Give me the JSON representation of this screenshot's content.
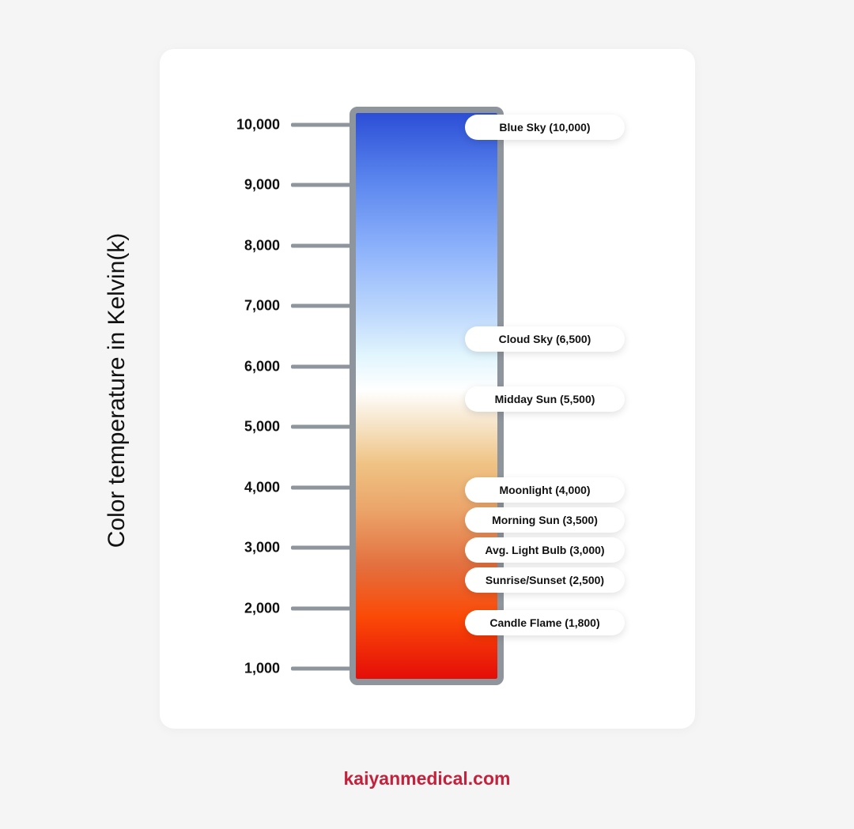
{
  "chart": {
    "y_axis_label": "Color temperature in Kelvin(k)",
    "ylim": [
      1000,
      10000
    ],
    "ticks": [
      {
        "value": 10000,
        "label": "10,000"
      },
      {
        "value": 9000,
        "label": "9,000"
      },
      {
        "value": 8000,
        "label": "8,000"
      },
      {
        "value": 7000,
        "label": "7,000"
      },
      {
        "value": 6000,
        "label": "6,000"
      },
      {
        "value": 5000,
        "label": "5,000"
      },
      {
        "value": 4000,
        "label": "4,000"
      },
      {
        "value": 3000,
        "label": "3,000"
      },
      {
        "value": 2000,
        "label": "2,000"
      },
      {
        "value": 1000,
        "label": "1,000"
      }
    ],
    "annotations": [
      {
        "label": "Blue Sky (10,000)",
        "value": 10000
      },
      {
        "label": "Cloud Sky (6,500)",
        "value": 6500
      },
      {
        "label": "Midday Sun (5,500)",
        "value": 5500
      },
      {
        "label": "Moonlight (4,000)",
        "value": 4000
      },
      {
        "label": "Morning Sun (3,500)",
        "value": 3500
      },
      {
        "label": "Avg. Light Bulb (3,000)",
        "value": 3000
      },
      {
        "label": "Sunrise/Sunset (2,500)",
        "value": 2500
      },
      {
        "label": "Candle Flame (1,800)",
        "value": 1800
      }
    ],
    "colors": {
      "bar_border": "#8f959d",
      "cool": "#2c4ed6",
      "neutral": "#ffffff",
      "warm": "#e40d08"
    }
  },
  "footer": {
    "text": "kaiyanmedical.com",
    "color": "#c3213c"
  }
}
